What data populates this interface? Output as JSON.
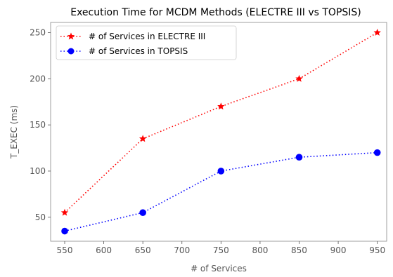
{
  "chart_data": {
    "type": "line",
    "title": "Execution Time for MCDM Methods (ELECTRE III vs TOPSIS)",
    "xlabel": "# of Services",
    "ylabel": "T_EXEC (ms)",
    "x": [
      550,
      650,
      750,
      850,
      950
    ],
    "xticks": [
      "550",
      "600",
      "650",
      "700",
      "750",
      "800",
      "850",
      "900",
      "950"
    ],
    "yticks": [
      "50",
      "100",
      "150",
      "200",
      "250"
    ],
    "xlim": [
      532,
      962
    ],
    "ylim": [
      24,
      261
    ],
    "grid": false,
    "legend_position": "upper-left",
    "series": [
      {
        "name": "# of Services in ELECTRE III",
        "values": [
          55,
          135,
          170,
          200,
          250
        ],
        "color": "#ff0000",
        "marker": "star",
        "linestyle": "dotted"
      },
      {
        "name": "# of Services in TOPSIS",
        "values": [
          35,
          55,
          100,
          115,
          120
        ],
        "color": "#0000ff",
        "marker": "circle",
        "linestyle": "dotted"
      }
    ]
  }
}
